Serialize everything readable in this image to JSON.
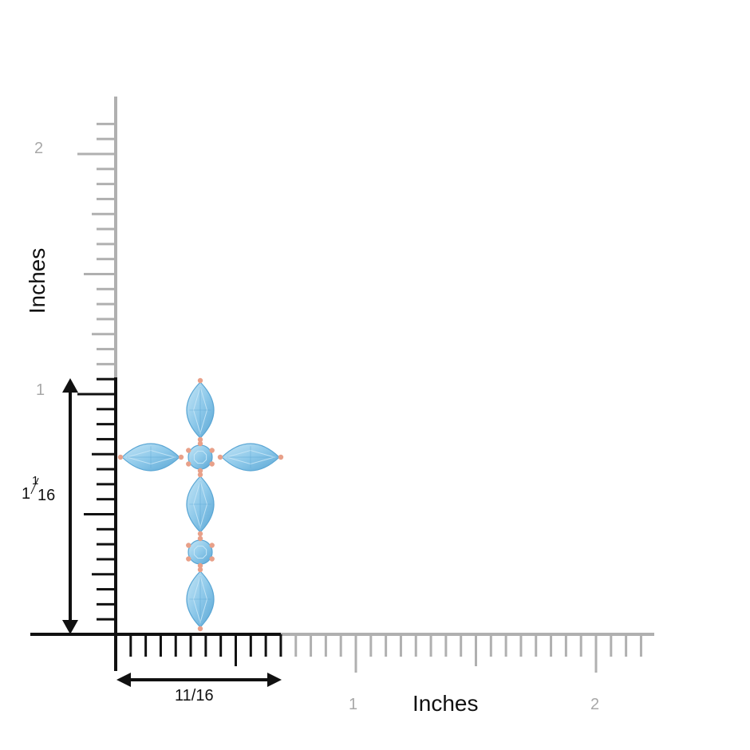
{
  "axes": {
    "y_title": "Inches",
    "x_title": "Inches",
    "y_tick_labels": [
      "1",
      "2"
    ],
    "x_tick_labels": [
      "1",
      "2"
    ],
    "unit": "inch",
    "ticks_per_inch": 16
  },
  "dimensions": {
    "height_label_whole": "1",
    "height_label_num": "1",
    "height_label_den": "16",
    "width_label": "11/16"
  },
  "product": {
    "name": "aquamarine-marquise-cross-pendant",
    "stones": {
      "marquise_count": 5,
      "round_count": 2
    },
    "colors": {
      "stone": "#8ec9ea",
      "stone_dark": "#5aa6d4",
      "stone_light": "#c6e6f6",
      "metal": "#e8a089"
    }
  },
  "colors": {
    "ruler_black": "#111111",
    "ruler_gray": "#b0b0b0",
    "tick_label_gray": "#a8a8a8"
  }
}
